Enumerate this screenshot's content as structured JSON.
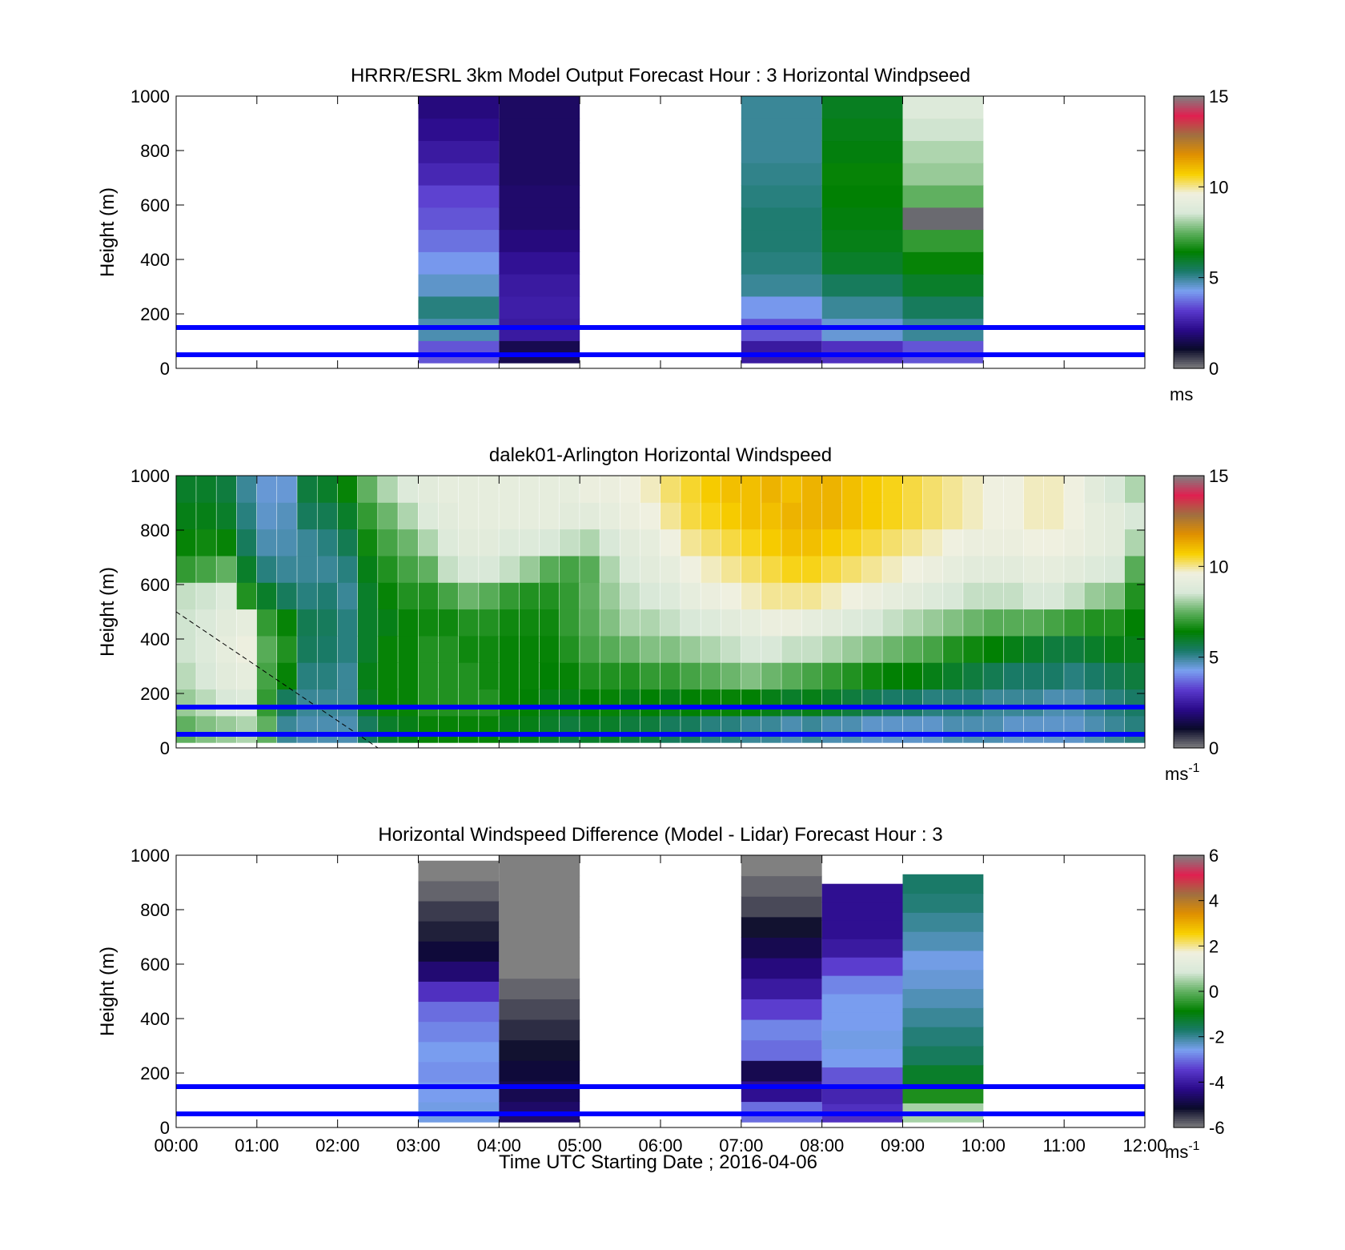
{
  "figure": {
    "xlabel": "Time UTC  Starting Date ; 2016-04-06",
    "xticks": [
      "00:00",
      "01:00",
      "02:00",
      "03:00",
      "04:00",
      "05:00",
      "06:00",
      "07:00",
      "08:00",
      "09:00",
      "10:00",
      "11:00",
      "12:00"
    ],
    "ylabel": "Height (m)",
    "yticks": [
      "0",
      "200",
      "400",
      "600",
      "800",
      "1000"
    ]
  },
  "colors": {
    "reference_lines": "#0000ff",
    "scale_stops": [
      "#808080",
      "#0a0a2a",
      "#2a0a8a",
      "#5a3acd",
      "#7aa0f0",
      "#1a7a6a",
      "#008000",
      "#60b060",
      "#d8e8d8",
      "#f0f0e0",
      "#f8d000",
      "#e09000",
      "#a07040",
      "#e02050",
      "#808080"
    ]
  },
  "chart_data": [
    {
      "type": "heatmap",
      "title": "HRRR/ESRL 3km Model Output   Forecast Hour : 3 Horizontal Windpseed",
      "ylim": [
        0,
        1000
      ],
      "xlim": [
        "00:00",
        "12:00"
      ],
      "colorbar": {
        "min": 0,
        "max": 15,
        "ticks": [
          "0",
          "5",
          "10",
          "15"
        ],
        "unit": "ms"
      },
      "reference_lines_y": [
        50,
        150
      ],
      "columns": [
        {
          "start": "03:00",
          "end": "04:00",
          "bottom": 20,
          "top": 1000,
          "values": [
            3.5,
            4.8,
            5.2,
            4.6,
            4.2,
            3.8,
            3.5,
            3.3,
            2.8,
            2.5,
            2.2,
            2.0
          ]
        },
        {
          "start": "04:00",
          "end": "05:00",
          "bottom": 20,
          "top": 1000,
          "values": [
            1.5,
            2.5,
            2.6,
            2.5,
            2.3,
            2.0,
            1.8,
            1.8,
            1.7,
            1.7,
            1.7,
            1.7
          ]
        },
        {
          "start": "07:00",
          "end": "08:00",
          "bottom": 20,
          "top": 1000,
          "values": [
            2.5,
            3.5,
            4.2,
            5.0,
            5.2,
            5.3,
            5.3,
            5.2,
            5.1,
            5.0,
            5.0,
            5.0
          ]
        },
        {
          "start": "08:00",
          "end": "09:00",
          "bottom": 20,
          "top": 1000,
          "values": [
            3.0,
            4.5,
            5.0,
            5.5,
            6.0,
            6.2,
            6.3,
            6.4,
            6.5,
            6.3,
            6.2,
            6.1
          ]
        },
        {
          "start": "09:00",
          "end": "10:00",
          "bottom": 20,
          "top": 1000,
          "values": [
            3.5,
            5.0,
            5.5,
            6.0,
            6.5,
            7.0,
            0.2,
            7.5,
            8.0,
            8.2,
            8.5,
            8.8
          ]
        }
      ]
    },
    {
      "type": "heatmap",
      "title": "dalek01-Arlington  Horizontal Windspeed",
      "ylim": [
        0,
        1000
      ],
      "xlim": [
        "00:00",
        "12:00"
      ],
      "colorbar": {
        "min": 0,
        "max": 15,
        "ticks": [
          "0",
          "5",
          "10",
          "15"
        ],
        "unit": "ms",
        "unit_exponent": "-1"
      },
      "reference_lines_y": [
        50,
        150
      ],
      "dashed_line": {
        "from": [
          "00:00",
          500
        ],
        "to": [
          "02:30",
          0
        ]
      },
      "columns_per_hour": 4,
      "height_profile_note": "approximate profiles: lowest to highest levels",
      "profiles": [
        [
          7.5,
          8.0,
          8.3,
          8.5,
          8.5,
          8.4,
          7.0,
          6.5,
          6.2,
          6.0
        ],
        [
          7.8,
          8.3,
          8.6,
          8.8,
          8.7,
          8.5,
          7.2,
          6.6,
          6.2,
          6.0
        ],
        [
          8.0,
          8.6,
          9.0,
          9.2,
          9.0,
          8.8,
          7.5,
          6.5,
          6.0,
          5.8
        ],
        [
          8.2,
          8.8,
          9.2,
          9.5,
          9.2,
          6.8,
          6.0,
          5.5,
          5.2,
          5.0
        ],
        [
          7.5,
          7.0,
          7.2,
          7.4,
          7.0,
          6.0,
          5.2,
          4.8,
          4.6,
          4.5
        ],
        [
          5.0,
          5.5,
          6.5,
          6.8,
          6.5,
          5.5,
          5.0,
          4.8,
          4.7,
          4.5
        ],
        [
          4.8,
          5.0,
          5.2,
          5.5,
          5.6,
          5.2,
          5.0,
          5.0,
          5.5,
          5.8
        ],
        [
          4.8,
          5.0,
          5.2,
          5.4,
          5.5,
          5.3,
          5.0,
          5.2,
          5.6,
          6.0
        ],
        [
          4.8,
          5.0,
          5.0,
          5.2,
          5.2,
          5.0,
          5.2,
          5.6,
          6.0,
          6.5
        ],
        [
          5.5,
          6.0,
          6.2,
          6.0,
          6.0,
          6.0,
          6.2,
          6.6,
          7.0,
          7.5
        ],
        [
          6.0,
          6.5,
          6.5,
          6.5,
          6.2,
          6.5,
          6.8,
          7.2,
          7.6,
          8.2
        ],
        [
          6.2,
          6.5,
          6.5,
          6.5,
          6.5,
          6.8,
          7.2,
          7.6,
          8.2,
          8.8
        ],
        [
          6.5,
          6.8,
          6.8,
          6.8,
          6.6,
          6.8,
          7.5,
          8.2,
          8.8,
          9.0
        ],
        [
          6.5,
          6.8,
          6.8,
          6.8,
          6.6,
          7.2,
          8.4,
          8.8,
          9.0,
          9.2
        ],
        [
          6.5,
          6.8,
          6.8,
          6.6,
          6.8,
          7.6,
          8.6,
          9.0,
          9.2,
          9.2
        ],
        [
          6.5,
          6.8,
          6.6,
          6.6,
          6.8,
          7.4,
          8.6,
          9.0,
          9.2,
          9.2
        ],
        [
          6.2,
          6.5,
          6.5,
          6.5,
          6.6,
          7.0,
          8.4,
          8.8,
          9.2,
          9.2
        ],
        [
          6.2,
          6.4,
          6.5,
          6.5,
          6.6,
          6.8,
          8.0,
          8.8,
          9.2,
          9.2
        ],
        [
          6.0,
          6.2,
          6.4,
          6.5,
          6.6,
          6.8,
          7.4,
          8.6,
          9.2,
          9.2
        ],
        [
          5.8,
          6.2,
          6.5,
          6.8,
          7.0,
          7.0,
          7.2,
          8.4,
          9.0,
          9.2
        ],
        [
          6.0,
          6.4,
          6.8,
          7.2,
          7.4,
          7.5,
          7.4,
          8.2,
          9.0,
          9.4
        ],
        [
          6.0,
          6.5,
          6.8,
          7.4,
          7.8,
          8.0,
          8.2,
          8.6,
          9.2,
          9.4
        ],
        [
          5.8,
          6.2,
          6.8,
          7.6,
          8.2,
          8.4,
          8.8,
          9.0,
          9.4,
          9.6
        ],
        [
          5.8,
          6.4,
          7.0,
          7.8,
          8.2,
          8.6,
          9.0,
          9.2,
          9.6,
          9.8
        ],
        [
          5.5,
          6.2,
          7.0,
          7.8,
          8.4,
          8.8,
          9.2,
          9.6,
          10.0,
          10.2
        ],
        [
          5.5,
          6.4,
          7.2,
          8.0,
          8.6,
          9.2,
          9.6,
          10.0,
          10.4,
          10.5
        ],
        [
          5.2,
          6.5,
          7.4,
          8.2,
          8.8,
          9.4,
          9.8,
          10.2,
          10.6,
          10.8
        ],
        [
          5.2,
          6.5,
          7.6,
          8.4,
          9.0,
          9.6,
          10.0,
          10.4,
          10.8,
          11.0
        ],
        [
          5.0,
          6.4,
          7.8,
          8.6,
          9.2,
          9.8,
          10.2,
          10.6,
          11.0,
          11.0
        ],
        [
          5.0,
          6.2,
          7.6,
          8.6,
          9.4,
          10.0,
          10.4,
          10.8,
          11.0,
          11.2
        ],
        [
          4.8,
          6.0,
          7.4,
          8.4,
          9.4,
          10.0,
          10.6,
          11.0,
          11.2,
          11.0
        ],
        [
          5.0,
          6.2,
          7.2,
          8.4,
          9.2,
          10.0,
          10.6,
          11.0,
          11.2,
          11.2
        ],
        [
          4.8,
          6.0,
          7.0,
          8.2,
          9.0,
          9.8,
          10.4,
          10.8,
          11.2,
          11.2
        ],
        [
          4.8,
          5.8,
          6.8,
          8.0,
          8.8,
          9.6,
          10.2,
          10.6,
          11.0,
          11.0
        ],
        [
          4.6,
          5.6,
          6.6,
          7.8,
          8.6,
          9.4,
          10.0,
          10.4,
          10.8,
          10.8
        ],
        [
          4.6,
          5.4,
          6.4,
          7.6,
          8.4,
          9.2,
          9.8,
          10.2,
          10.6,
          10.6
        ],
        [
          4.6,
          5.4,
          6.4,
          7.4,
          8.2,
          9.0,
          9.6,
          10.0,
          10.4,
          10.4
        ],
        [
          4.6,
          5.2,
          6.2,
          7.2,
          8.0,
          8.8,
          9.4,
          9.8,
          10.2,
          10.2
        ],
        [
          4.8,
          5.2,
          6.0,
          6.8,
          7.8,
          8.6,
          9.2,
          9.6,
          10.0,
          10.0
        ],
        [
          4.8,
          5.2,
          5.8,
          6.6,
          7.6,
          8.4,
          9.0,
          9.4,
          9.8,
          9.8
        ],
        [
          4.8,
          5.0,
          5.6,
          6.4,
          7.4,
          8.4,
          9.0,
          9.4,
          9.6,
          9.6
        ],
        [
          4.6,
          5.0,
          5.4,
          6.2,
          7.4,
          8.4,
          9.0,
          9.4,
          9.6,
          9.6
        ],
        [
          4.6,
          5.0,
          5.4,
          6.0,
          7.4,
          8.6,
          9.2,
          9.6,
          9.8,
          9.8
        ],
        [
          4.6,
          4.8,
          5.4,
          5.8,
          7.2,
          8.6,
          9.2,
          9.6,
          9.8,
          9.8
        ],
        [
          4.6,
          4.8,
          5.2,
          5.8,
          7.0,
          8.4,
          9.0,
          9.4,
          9.6,
          9.6
        ],
        [
          4.8,
          5.0,
          5.4,
          6.0,
          6.8,
          8.0,
          8.8,
          9.2,
          9.2,
          9.0
        ],
        [
          5.0,
          5.2,
          5.6,
          6.2,
          6.8,
          7.8,
          8.6,
          9.0,
          9.0,
          8.6
        ],
        [
          5.2,
          5.4,
          5.8,
          6.2,
          6.4,
          6.8,
          7.4,
          8.2,
          8.6,
          8.2
        ]
      ]
    },
    {
      "type": "heatmap",
      "title": "Horizontal Windspeed Difference (Model - Lidar) Forecast Hour : 3",
      "ylim": [
        0,
        1000
      ],
      "xlim": [
        "00:00",
        "12:00"
      ],
      "colorbar": {
        "min": -6,
        "max": 6,
        "ticks": [
          "-6",
          "-4",
          "-2",
          "0",
          "2",
          "4",
          "6"
        ],
        "unit": "ms",
        "unit_exponent": "-1"
      },
      "reference_lines_y": [
        50,
        150
      ],
      "columns": [
        {
          "start": "03:00",
          "end": "04:00",
          "bottom": 20,
          "top": 980,
          "values": [
            -2.5,
            -2.6,
            -2.7,
            -2.6,
            -2.8,
            -3.0,
            -3.6,
            -4.5,
            -5.0,
            -5.3,
            -5.5,
            -5.8,
            -6.0
          ]
        },
        {
          "start": "04:00",
          "end": "05:00",
          "bottom": 20,
          "top": 1000,
          "values": [
            -4.6,
            -4.8,
            -5.0,
            -5.2,
            -5.4,
            -5.6,
            -5.8,
            -6.0,
            -6.0,
            -6.0,
            -6.0,
            -6.0,
            -6.0
          ]
        },
        {
          "start": "07:00",
          "end": "08:00",
          "bottom": 20,
          "top": 1000,
          "values": [
            -3.0,
            -4.2,
            -4.8,
            -3.0,
            -2.8,
            -3.4,
            -4.0,
            -4.4,
            -4.8,
            -5.2,
            -5.6,
            -5.8,
            -6.0
          ]
        },
        {
          "start": "08:00",
          "end": "09:00",
          "bottom": 20,
          "top": 895,
          "values": [
            -3.6,
            -3.8,
            -3.2,
            -2.6,
            -2.5,
            -2.6,
            -2.6,
            -2.8,
            -3.4,
            -4.0,
            -4.2,
            -4.2,
            -4.2
          ]
        },
        {
          "start": "09:00",
          "end": "10:00",
          "bottom": 20,
          "top": 930,
          "values": [
            0.5,
            -0.6,
            -1.2,
            -1.6,
            -1.8,
            -2.0,
            -2.2,
            -2.4,
            -2.5,
            -2.2,
            -2.0,
            -1.8,
            -1.7
          ]
        }
      ]
    }
  ]
}
